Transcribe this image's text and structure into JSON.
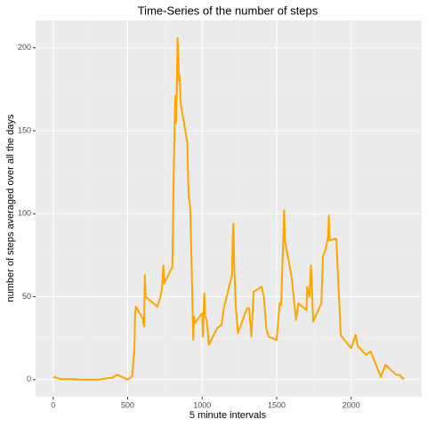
{
  "chart_data": {
    "type": "line",
    "title": "Time-Series of the number of steps",
    "x_label": "5 minute intervals",
    "y_label": "number of steps averaged over all the days",
    "x": [
      0,
      50,
      100,
      200,
      300,
      400,
      430,
      500,
      530,
      545,
      550,
      555,
      600,
      610,
      615,
      620,
      700,
      720,
      730,
      740,
      745,
      800,
      810,
      820,
      825,
      830,
      835,
      840,
      845,
      850,
      855,
      900,
      905,
      910,
      915,
      920,
      930,
      940,
      945,
      950,
      1000,
      1005,
      1010,
      1015,
      1020,
      1030,
      1045,
      1100,
      1130,
      1145,
      1200,
      1205,
      1210,
      1215,
      1225,
      1240,
      1300,
      1315,
      1330,
      1345,
      1400,
      1415,
      1430,
      1445,
      1500,
      1520,
      1530,
      1545,
      1550,
      1555,
      1600,
      1630,
      1645,
      1700,
      1705,
      1720,
      1730,
      1735,
      1745,
      1800,
      1810,
      1830,
      1845,
      1850,
      1855,
      1900,
      1930,
      1945,
      2000,
      2030,
      2045,
      2100,
      2130,
      2200,
      2230,
      2300,
      2330,
      2345,
      2355
    ],
    "series": [
      {
        "name": "steps",
        "color": "#FFA500",
        "values": [
          1.7,
          0.3,
          0.4,
          0,
          0,
          1.2,
          3,
          0,
          2,
          18,
          40,
          44,
          37,
          32,
          63,
          50,
          44,
          50,
          55,
          69,
          58,
          68,
          130,
          171,
          155,
          177,
          206,
          195,
          180,
          183,
          167,
          143,
          124,
          109,
          108,
          103,
          66,
          24,
          38,
          34,
          40,
          26,
          42,
          52,
          38,
          36,
          21,
          31,
          33,
          43,
          63,
          87,
          94,
          69,
          45,
          28,
          43,
          43,
          26,
          53,
          56,
          49,
          31,
          26,
          24,
          46,
          45,
          87,
          102,
          84,
          62,
          36,
          46,
          42,
          56,
          50,
          69,
          59,
          35,
          46,
          74,
          79,
          86,
          99,
          84,
          85,
          27,
          25,
          19,
          27,
          20,
          15,
          17,
          1.6,
          9,
          3,
          2.6,
          0.5,
          1.1
        ]
      }
    ],
    "xlim": [
      -118,
      2473
    ],
    "xticks": [
      0,
      500,
      1000,
      1500,
      2000
    ],
    "ylim": [
      -10.3,
      216.5
    ],
    "yticks": [
      0,
      50,
      100,
      150,
      200
    ],
    "grid": true
  }
}
